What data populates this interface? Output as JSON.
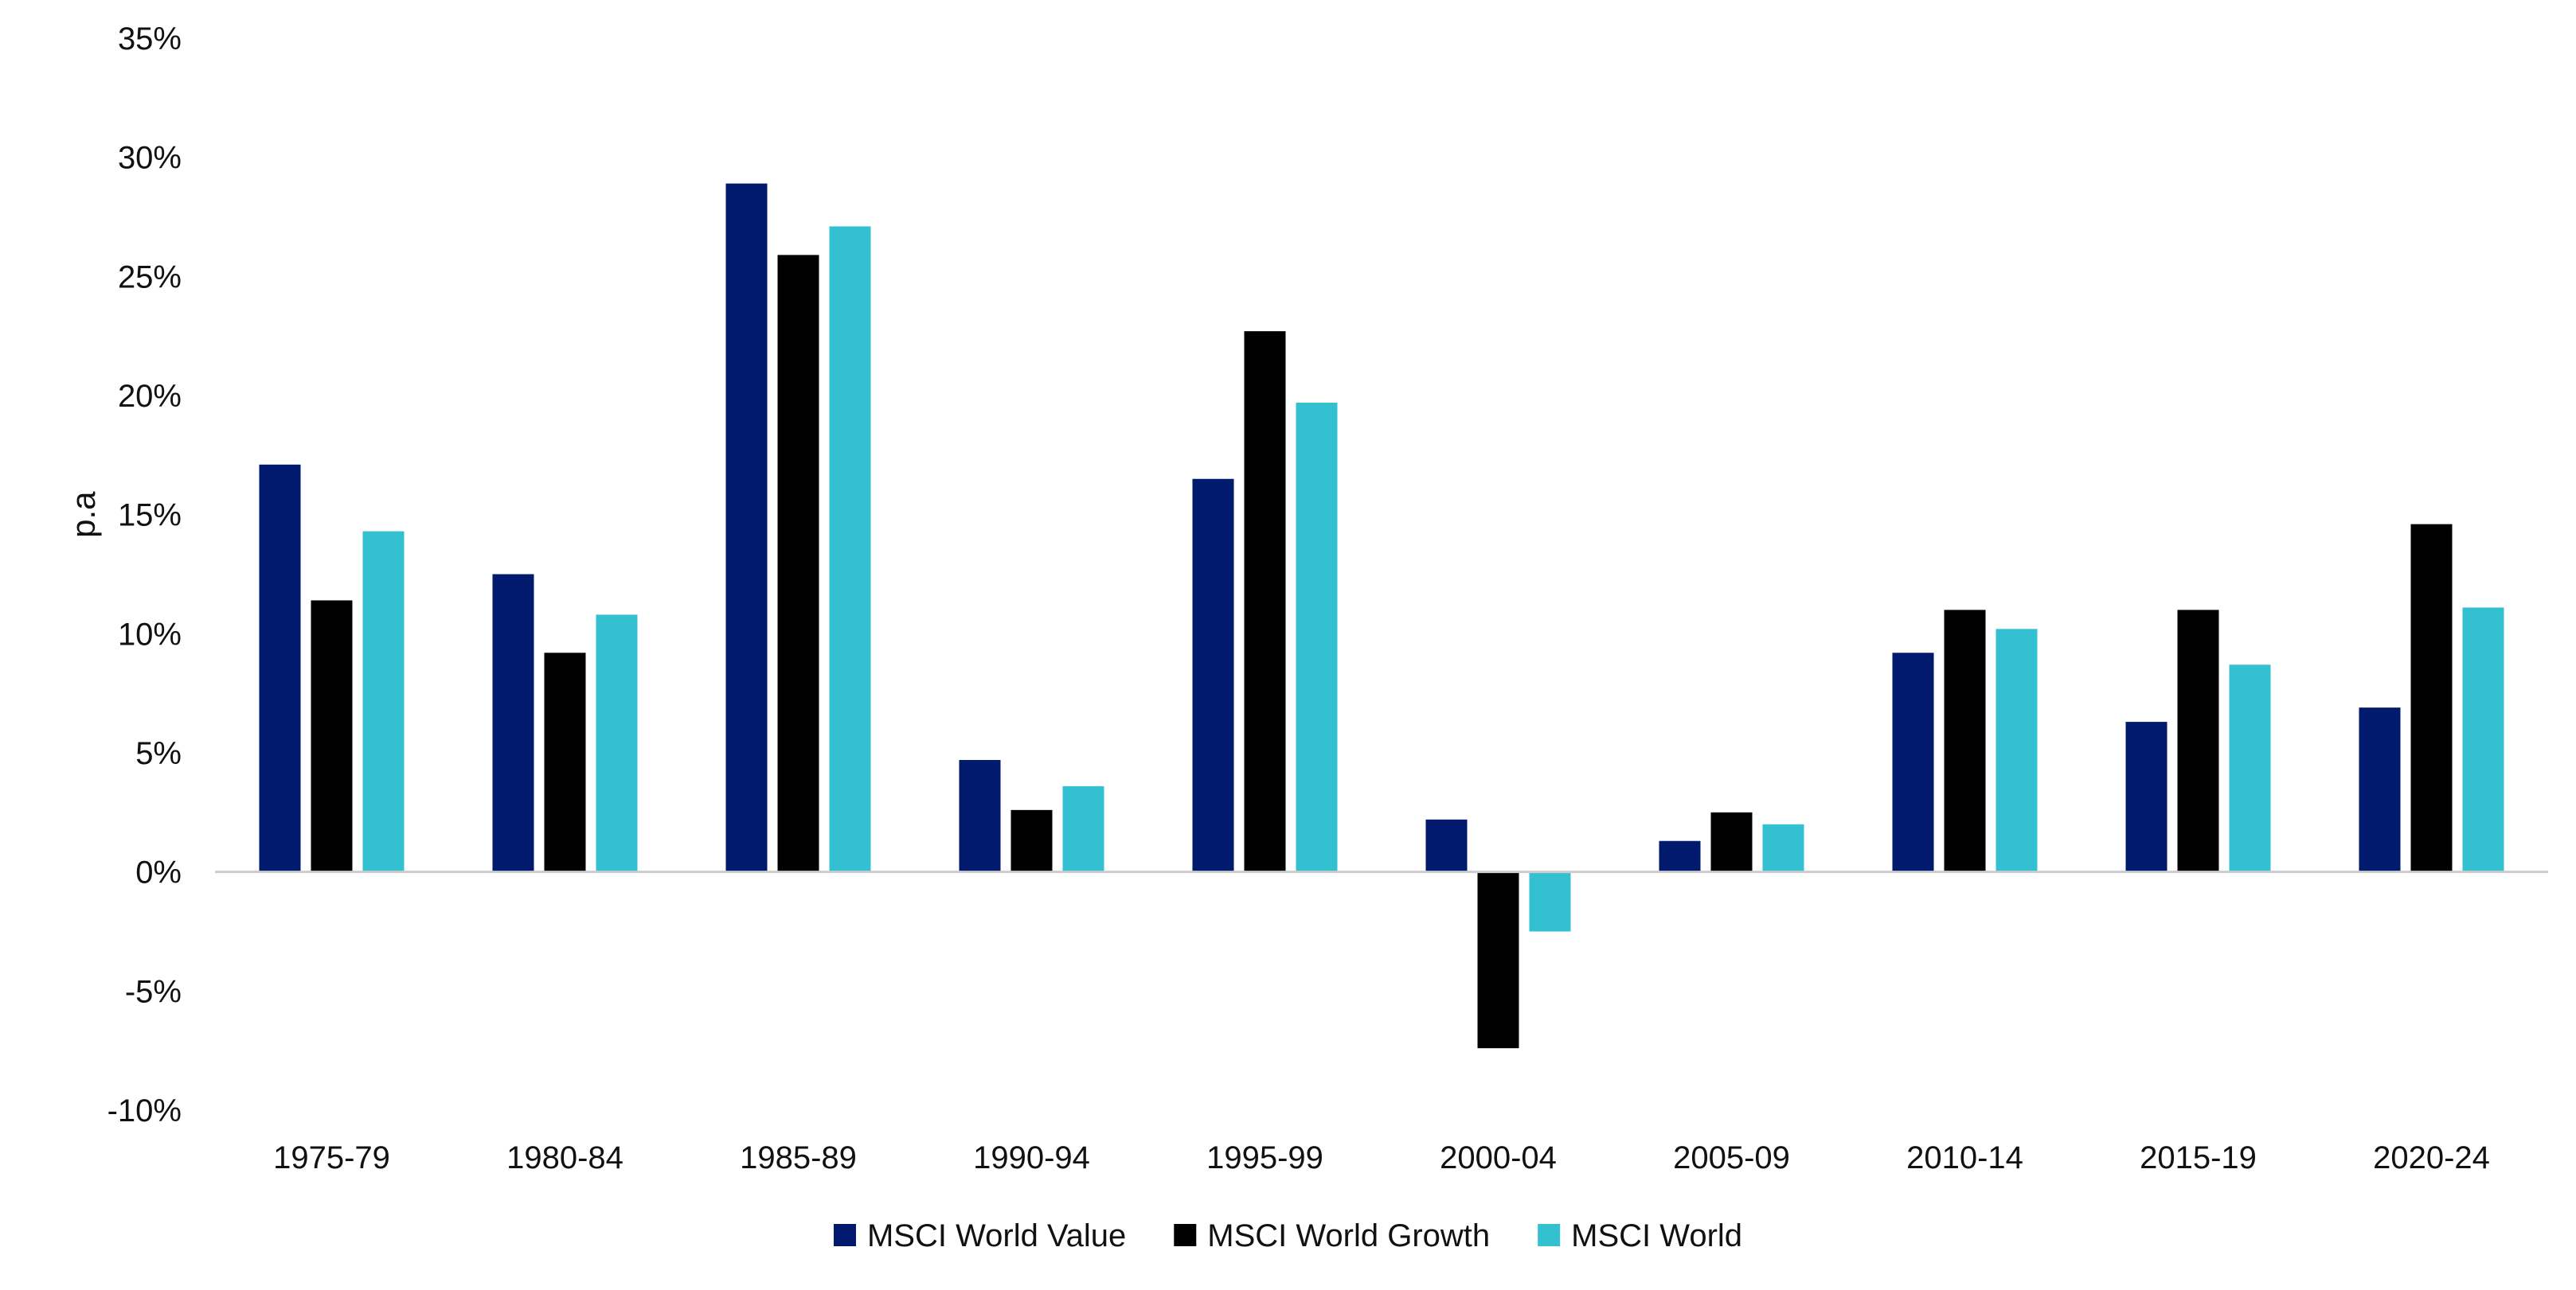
{
  "chart_data": {
    "type": "bar",
    "title": "",
    "xlabel": "",
    "ylabel": "p.a",
    "ylim": [
      -10,
      35
    ],
    "ytick_step": 5,
    "ytick_suffix": "%",
    "grid": false,
    "legend_position": "bottom-center",
    "categories": [
      "1975-79",
      "1980-84",
      "1985-89",
      "1990-94",
      "1995-99",
      "2000-04",
      "2005-09",
      "2010-14",
      "2015-19",
      "2020-24"
    ],
    "series": [
      {
        "name": "MSCI World Value",
        "color": "#021a6e",
        "values": [
          17.1,
          12.5,
          28.9,
          4.7,
          16.5,
          2.2,
          1.3,
          9.2,
          6.3,
          6.9
        ]
      },
      {
        "name": "MSCI World Growth",
        "color": "#000000",
        "values": [
          11.4,
          9.2,
          25.9,
          2.6,
          22.7,
          -7.4,
          2.5,
          11.0,
          11.0,
          14.6
        ]
      },
      {
        "name": "MSCI World",
        "color": "#33c1d1",
        "values": [
          14.3,
          10.8,
          27.1,
          3.6,
          19.7,
          -2.5,
          2.0,
          10.2,
          8.7,
          11.1
        ]
      }
    ]
  }
}
